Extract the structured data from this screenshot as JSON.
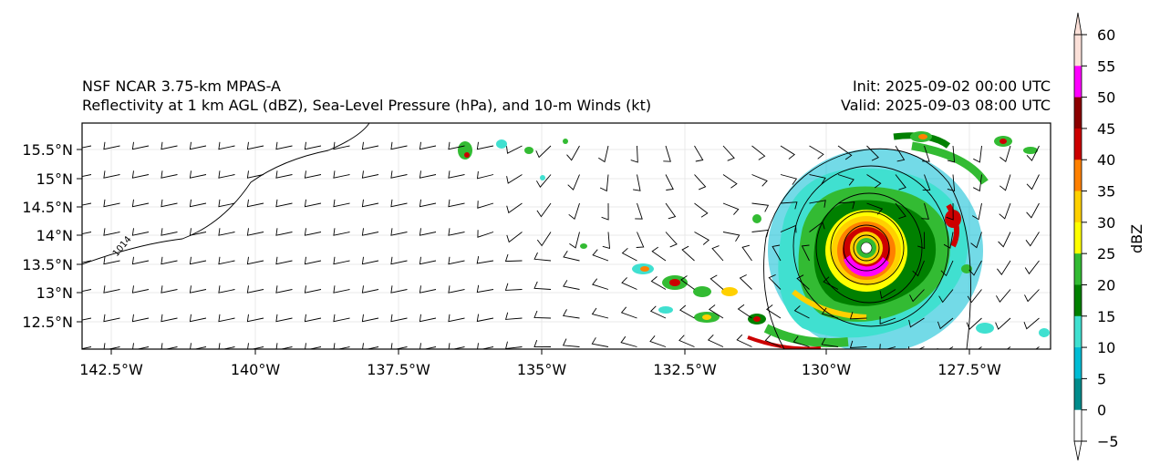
{
  "header": {
    "line1": "NSF NCAR 3.75-km MPAS-A",
    "line2": "Reflectivity at 1 km AGL (dBZ), Sea-Level Pressure (hPa), and 10-m Winds (kt)",
    "init": "Init: 2025-09-02 00:00 UTC",
    "valid": "Valid: 2025-09-03 08:00 UTC"
  },
  "map": {
    "lat_ticks": [
      "15.5°N",
      "15°N",
      "14.5°N",
      "14°N",
      "13.5°N",
      "13°N",
      "12.5°N"
    ],
    "lon_ticks": [
      "142.5°W",
      "140°W",
      "137.5°W",
      "135°W",
      "132.5°W",
      "130°W",
      "127.5°W"
    ],
    "isobar_label": "1014"
  },
  "colorbar": {
    "label": "dBZ",
    "ticks": [
      "60",
      "55",
      "50",
      "45",
      "40",
      "35",
      "30",
      "25",
      "20",
      "15",
      "10",
      "5",
      "0",
      "−5"
    ],
    "colors": [
      "#fbe0d8",
      "#ff00ff",
      "#8b0000",
      "#cc0000",
      "#ff8000",
      "#ffd000",
      "#ffff00",
      "#33bb33",
      "#008000",
      "#40e0d0",
      "#00bcd4",
      "#008b8b",
      "#ffffff"
    ]
  }
}
